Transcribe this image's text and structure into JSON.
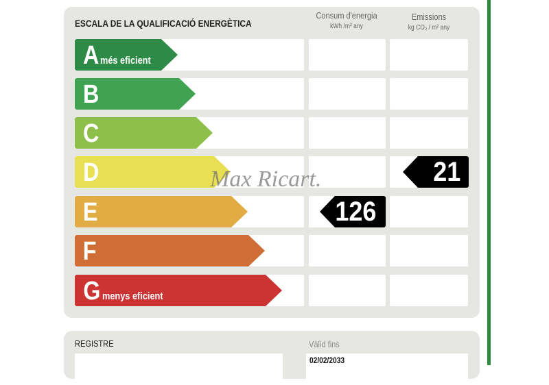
{
  "scale": {
    "title": "ESCALA DE LA QUALIFICACIÓ ENERGÈTICA",
    "consumption_header": "Consum d'energia",
    "consumption_unit": "kWh /m² any",
    "emissions_header": "Emissions",
    "emissions_unit": "kg CO₂ / m² any",
    "rows": [
      {
        "letter": "A",
        "desc": "més eficient",
        "color": "#2e8b47"
      },
      {
        "letter": "B",
        "desc": "",
        "color": "#3fa352"
      },
      {
        "letter": "C",
        "desc": "",
        "color": "#8dbf4a"
      },
      {
        "letter": "D",
        "desc": "",
        "color": "#e8e052"
      },
      {
        "letter": "E",
        "desc": "",
        "color": "#e2ac44"
      },
      {
        "letter": "F",
        "desc": "",
        "color": "#cf6e36"
      },
      {
        "letter": "G",
        "desc": "menys eficient",
        "color": "#cc3333"
      }
    ],
    "consumption": {
      "value": "126",
      "rating": "E"
    },
    "emissions": {
      "value": "21",
      "rating": "D"
    }
  },
  "watermark": "MaxRicart.",
  "registre": {
    "label": "REGISTRE",
    "valid_label": "Vàlid fins",
    "valid_date": "02/02/2033"
  },
  "accent": "#2f8a3e"
}
